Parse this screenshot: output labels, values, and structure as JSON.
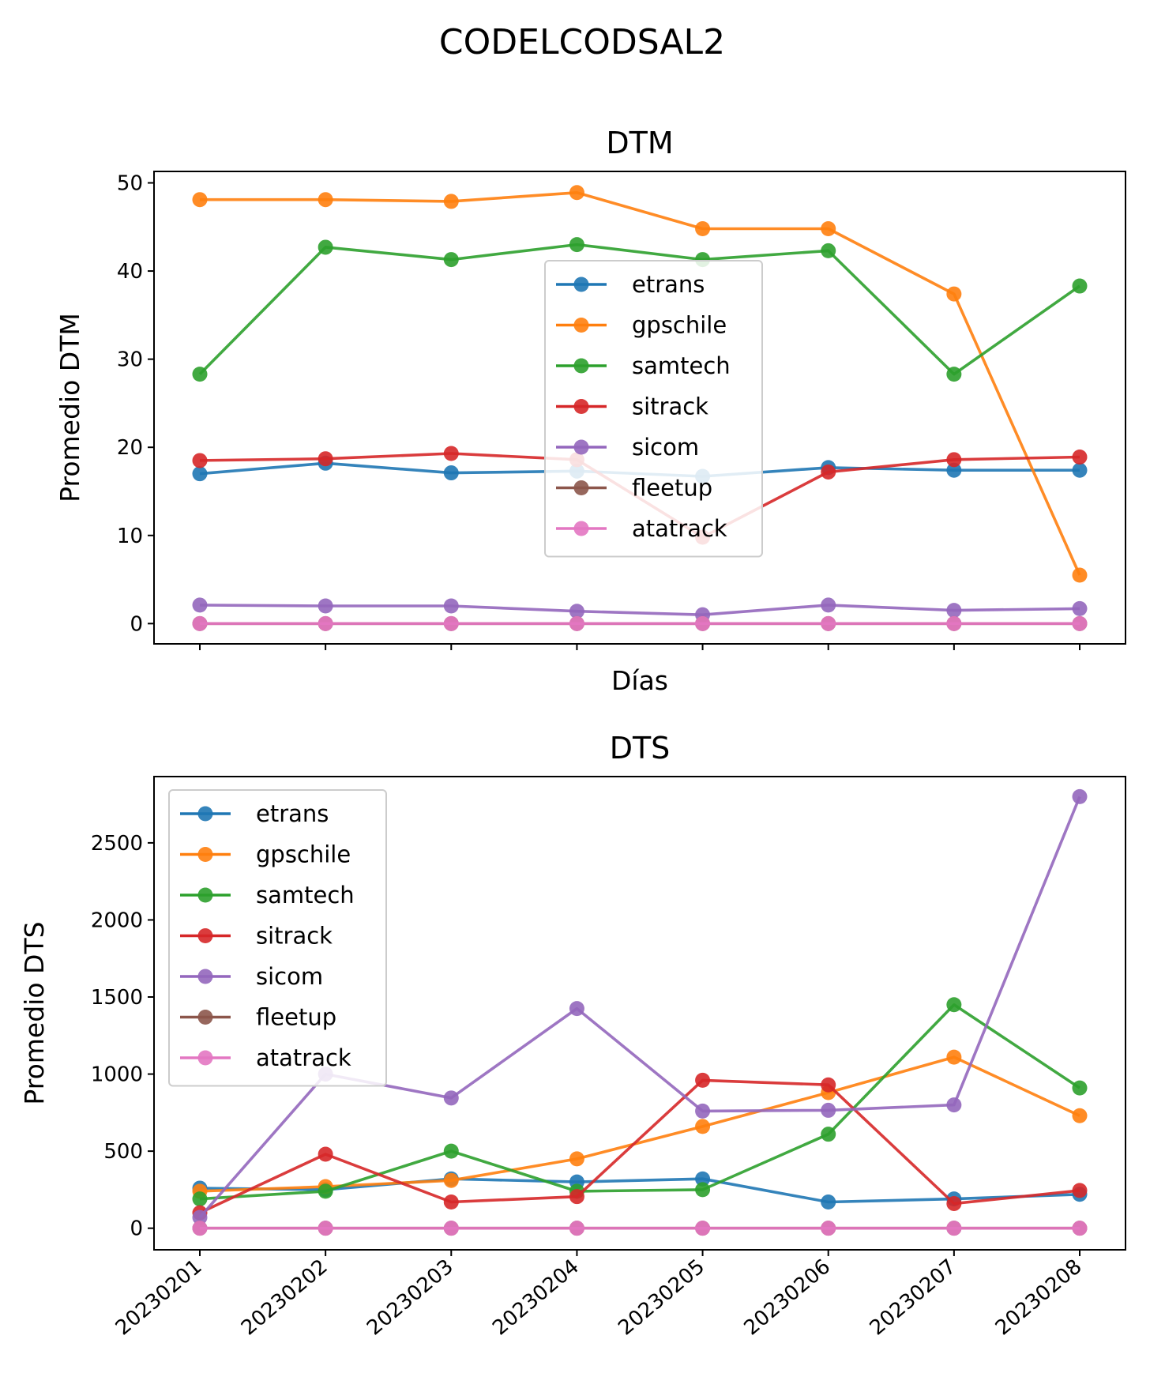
{
  "figure": {
    "suptitle": "CODELCODSAL2"
  },
  "chart_data": [
    {
      "type": "line",
      "title": "DTM",
      "xlabel": "Días",
      "ylabel": "Promedio DTM",
      "categories": [
        "20230201",
        "20230202",
        "20230203",
        "20230204",
        "20230205",
        "20230206",
        "20230207",
        "20230208"
      ],
      "show_xtick_labels": false,
      "ylim": [
        -2.3,
        51.3
      ],
      "yticks": [
        0,
        10,
        20,
        30,
        40,
        50
      ],
      "legend": "center",
      "grid": false,
      "series": [
        {
          "name": "etrans",
          "color": "#1f77b4",
          "values": [
            17.0,
            18.2,
            17.1,
            17.3,
            16.7,
            17.7,
            17.4,
            17.4
          ]
        },
        {
          "name": "gpschile",
          "color": "#ff7f0e",
          "values": [
            48.1,
            48.1,
            47.9,
            48.9,
            44.8,
            44.8,
            37.4,
            5.5
          ]
        },
        {
          "name": "samtech",
          "color": "#2ca02c",
          "values": [
            28.3,
            42.7,
            41.3,
            43.0,
            41.3,
            42.3,
            28.3,
            38.3
          ]
        },
        {
          "name": "sitrack",
          "color": "#d62728",
          "values": [
            18.5,
            18.7,
            19.3,
            18.6,
            9.8,
            17.2,
            18.6,
            18.9
          ]
        },
        {
          "name": "sicom",
          "color": "#9467bd",
          "values": [
            2.1,
            2.0,
            2.0,
            1.4,
            1.0,
            2.1,
            1.5,
            1.7
          ]
        },
        {
          "name": "fleetup",
          "color": "#8c564b",
          "values": [
            0,
            0,
            0,
            0,
            0,
            0,
            0,
            0
          ]
        },
        {
          "name": "atatrack",
          "color": "#e377c2",
          "values": [
            0,
            0,
            0,
            0,
            0,
            0,
            0,
            0
          ]
        }
      ]
    },
    {
      "type": "line",
      "title": "DTS",
      "xlabel": "",
      "ylabel": "Promedio DTS",
      "categories": [
        "20230201",
        "20230202",
        "20230203",
        "20230204",
        "20230205",
        "20230206",
        "20230207",
        "20230208"
      ],
      "show_xtick_labels": true,
      "ylim": [
        -140,
        2930
      ],
      "yticks": [
        0,
        500,
        1000,
        1500,
        2000,
        2500
      ],
      "legend": "upper left",
      "grid": false,
      "series": [
        {
          "name": "etrans",
          "color": "#1f77b4",
          "values": [
            260,
            250,
            320,
            300,
            320,
            170,
            190,
            220
          ]
        },
        {
          "name": "gpschile",
          "color": "#ff7f0e",
          "values": [
            240,
            270,
            310,
            450,
            660,
            880,
            1110,
            730
          ]
        },
        {
          "name": "samtech",
          "color": "#2ca02c",
          "values": [
            190,
            240,
            500,
            240,
            250,
            610,
            1450,
            910
          ]
        },
        {
          "name": "sitrack",
          "color": "#d62728",
          "values": [
            100,
            480,
            170,
            205,
            960,
            930,
            160,
            245
          ]
        },
        {
          "name": "sicom",
          "color": "#9467bd",
          "values": [
            70,
            1000,
            845,
            1425,
            760,
            765,
            800,
            2800
          ]
        },
        {
          "name": "fleetup",
          "color": "#8c564b",
          "values": [
            0,
            0,
            0,
            0,
            0,
            0,
            0,
            0
          ]
        },
        {
          "name": "atatrack",
          "color": "#e377c2",
          "values": [
            0,
            0,
            0,
            0,
            0,
            0,
            0,
            0
          ]
        }
      ]
    }
  ]
}
